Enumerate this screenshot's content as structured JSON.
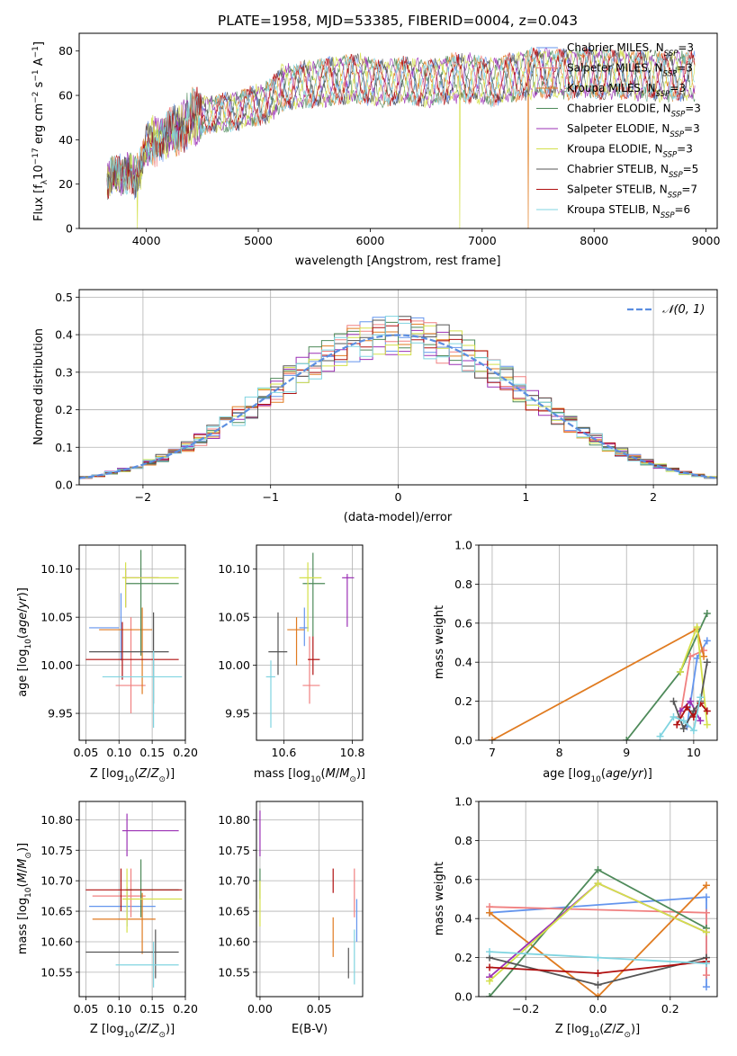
{
  "figure": {
    "title": "PLATE=1958, MJD=53385, FIBERID=0004, z=0.043"
  },
  "legend": {
    "entries": [
      "Chabrier MILES, N_SSP=3",
      "Salpeter MILES, N_SSP=3",
      "Kroupa MILES, N_SSP=3",
      "Chabrier ELODIE, N_SSP=3",
      "Salpeter ELODIE, N_SSP=3",
      "Kroupa ELODIE, N_SSP=3",
      "Chabrier STELIB, N_SSP=5",
      "Salpeter STELIB, N_SSP=7",
      "Kroupa STELIB, N_SSP=6"
    ]
  },
  "colors": {
    "Chabrier MILES": "#6495ed",
    "Salpeter MILES": "#f08080",
    "Kroupa MILES": "#e07b20",
    "Chabrier ELODIE": "#4e8a5a",
    "Salpeter ELODIE": "#9b30b5",
    "Kroupa ELODIE": "#d4e04a",
    "Chabrier STELIB": "#555555",
    "Salpeter STELIB": "#b01010",
    "Kroupa STELIB": "#80d4e0",
    "grid": "#b0b0b0",
    "normal": "#5b8ee0"
  },
  "chart_data": [
    {
      "type": "line",
      "id": "spectrum",
      "xlabel": "wavelength [Angstrom, rest frame]",
      "ylabel": "Flux [f_λ 10^-17 erg cm^-2 s^-1 A^-1]",
      "xlim": [
        3400,
        9100
      ],
      "ylim": [
        0,
        88
      ],
      "xticks": [
        4000,
        5000,
        6000,
        7000,
        8000,
        9000
      ],
      "yticks": [
        0,
        20,
        40,
        60,
        80
      ],
      "grid": false,
      "legend_position": "upper-right",
      "envelope_x": [
        3650,
        3700,
        3800,
        3850,
        3900,
        3950,
        4000,
        4100,
        4200,
        4300,
        4400,
        4500,
        4700,
        4900,
        5100,
        5200,
        5300,
        5500,
        5700,
        5900,
        6100,
        6300,
        6500,
        6700,
        6900,
        7100,
        7300,
        7500,
        7700,
        7900,
        8100,
        8300,
        8500,
        8700,
        8900
      ],
      "envelope_y": [
        24,
        28,
        27,
        30,
        26,
        30,
        42,
        46,
        49,
        50,
        57,
        58,
        59,
        62,
        65,
        72,
        73,
        74,
        76,
        77,
        74,
        76,
        74,
        77,
        77,
        75,
        78,
        80,
        79,
        80,
        79,
        79,
        78,
        78,
        78
      ],
      "dips": [
        {
          "series": "Kroupa ELODIE",
          "x": 3920,
          "y": 0
        },
        {
          "series": "Kroupa ELODIE",
          "x": 6800,
          "y": 0
        },
        {
          "series": "Kroupa MILES",
          "x": 7410,
          "y": 0
        }
      ]
    },
    {
      "type": "histogram",
      "id": "residuals",
      "xlabel": "(data-model)/error",
      "ylabel": "Normed distribution",
      "xlim": [
        -2.5,
        2.5
      ],
      "ylim": [
        0,
        0.52
      ],
      "xticks": [
        -2,
        -1,
        0,
        1,
        2
      ],
      "yticks": [
        0.0,
        0.1,
        0.2,
        0.3,
        0.4,
        0.5
      ],
      "grid": true,
      "legend_position": "upper-right",
      "reference_curve": "𝒩(0, 1)",
      "bin_width": 0.1
    },
    {
      "type": "errorbar",
      "id": "age-vs-Z",
      "xlabel": "Z [log10(Z/Z⊙)]",
      "ylabel": "age  [log10(age/yr)]",
      "xlim": [
        0.04,
        0.2
      ],
      "ylim": [
        9.922,
        10.125
      ],
      "xticks": [
        0.05,
        0.1,
        0.15,
        0.2
      ],
      "yticks": [
        9.95,
        10.0,
        10.05,
        10.1
      ],
      "grid": true,
      "points": [
        {
          "series": "Chabrier MILES",
          "x": 0.103,
          "xerr": [
            0.055,
            0.1
          ],
          "y": 10.039,
          "yerr": [
            10.005,
            10.075
          ]
        },
        {
          "series": "Salpeter MILES",
          "x": 0.118,
          "xerr": [
            0.095,
            0.14
          ],
          "y": 9.979,
          "yerr": [
            9.95,
            10.05
          ]
        },
        {
          "series": "Kroupa MILES",
          "x": 0.135,
          "xerr": [
            0.07,
            0.15
          ],
          "y": 10.037,
          "yerr": [
            9.97,
            10.06
          ]
        },
        {
          "series": "Chabrier ELODIE",
          "x": 0.133,
          "xerr": [
            0.11,
            0.19
          ],
          "y": 10.085,
          "yerr": [
            10.01,
            10.12
          ]
        },
        {
          "series": "Salpeter ELODIE",
          "x": 0.11,
          "xerr": [
            0.105,
            0.16
          ],
          "y": 10.091,
          "yerr": [
            10.06,
            10.1
          ]
        },
        {
          "series": "Kroupa ELODIE",
          "x": 0.11,
          "xerr": [
            0.105,
            0.19
          ],
          "y": 10.091,
          "yerr": [
            10.06,
            10.107
          ]
        },
        {
          "series": "Chabrier STELIB",
          "x": 0.152,
          "xerr": [
            0.055,
            0.175
          ],
          "y": 10.014,
          "yerr": [
            9.96,
            10.055
          ]
        },
        {
          "series": "Salpeter STELIB",
          "x": 0.105,
          "xerr": [
            0.05,
            0.19
          ],
          "y": 10.006,
          "yerr": [
            9.985,
            10.045
          ]
        },
        {
          "series": "Kroupa STELIB",
          "x": 0.152,
          "xerr": [
            0.075,
            0.195
          ],
          "y": 9.988,
          "yerr": [
            9.935,
            10.015
          ]
        }
      ]
    },
    {
      "type": "errorbar",
      "id": "age-vs-mass",
      "xlabel": "mass [log10(M/M⊙)]",
      "ylabel": "",
      "xlim": [
        10.52,
        10.83
      ],
      "ylim": [
        9.922,
        10.125
      ],
      "xticks": [
        10.6,
        10.8
      ],
      "yticks": [
        9.95,
        10.0,
        10.05,
        10.1
      ],
      "grid": true,
      "points": [
        {
          "series": "Chabrier MILES",
          "x": 10.66,
          "xerr": [
            10.645,
            10.672
          ],
          "y": 10.039,
          "yerr": [
            10.02,
            10.06
          ]
        },
        {
          "series": "Salpeter MILES",
          "x": 10.675,
          "xerr": [
            10.655,
            10.705
          ],
          "y": 9.979,
          "yerr": [
            9.96,
            10.03
          ]
        },
        {
          "series": "Kroupa MILES",
          "x": 10.637,
          "xerr": [
            10.61,
            10.66
          ],
          "y": 10.037,
          "yerr": [
            10.0,
            10.05
          ]
        },
        {
          "series": "Chabrier ELODIE",
          "x": 10.685,
          "xerr": [
            10.655,
            10.72
          ],
          "y": 10.085,
          "yerr": [
            10.03,
            10.117
          ]
        },
        {
          "series": "Salpeter ELODIE",
          "x": 10.785,
          "xerr": [
            10.77,
            10.805
          ],
          "y": 10.091,
          "yerr": [
            10.04,
            10.095
          ]
        },
        {
          "series": "Kroupa ELODIE",
          "x": 10.67,
          "xerr": [
            10.645,
            10.71
          ],
          "y": 10.091,
          "yerr": [
            10.035,
            10.107
          ]
        },
        {
          "series": "Chabrier STELIB",
          "x": 10.583,
          "xerr": [
            10.555,
            10.61
          ],
          "y": 10.014,
          "yerr": [
            9.99,
            10.055
          ]
        },
        {
          "series": "Salpeter STELIB",
          "x": 10.685,
          "xerr": [
            10.67,
            10.705
          ],
          "y": 10.006,
          "yerr": [
            9.99,
            10.03
          ]
        },
        {
          "series": "Kroupa STELIB",
          "x": 10.562,
          "xerr": [
            10.548,
            10.575
          ],
          "y": 9.988,
          "yerr": [
            9.935,
            10.005
          ]
        }
      ]
    },
    {
      "type": "line",
      "id": "mass-weight-vs-age",
      "xlabel": "age  [log10(age/yr)]",
      "ylabel": "mass weight",
      "xlim": [
        6.8,
        10.35
      ],
      "ylim": [
        0,
        1.0
      ],
      "xticks": [
        7,
        8,
        9,
        10
      ],
      "yticks": [
        0.0,
        0.2,
        0.4,
        0.6,
        0.8,
        1.0
      ],
      "grid": true,
      "series": [
        {
          "name": "Chabrier MILES",
          "x": [
            9.9,
            10.05,
            10.2
          ],
          "y": [
            0.07,
            0.42,
            0.51
          ]
        },
        {
          "name": "Salpeter MILES",
          "x": [
            9.8,
            9.95,
            10.15
          ],
          "y": [
            0.12,
            0.43,
            0.46
          ]
        },
        {
          "name": "Kroupa MILES",
          "x": [
            7.0,
            10.05,
            10.15
          ],
          "y": [
            0.0,
            0.57,
            0.43
          ]
        },
        {
          "name": "Chabrier ELODIE",
          "x": [
            9.0,
            9.8,
            10.2
          ],
          "y": [
            0.0,
            0.35,
            0.65
          ]
        },
        {
          "name": "Salpeter ELODIE",
          "x": [
            9.8,
            9.95,
            10.1
          ],
          "y": [
            0.15,
            0.2,
            0.1
          ]
        },
        {
          "name": "Kroupa ELODIE",
          "x": [
            9.8,
            10.05,
            10.2
          ],
          "y": [
            0.35,
            0.58,
            0.08
          ]
        },
        {
          "name": "Chabrier STELIB",
          "x": [
            9.7,
            9.85,
            10.0,
            10.1,
            10.2
          ],
          "y": [
            0.2,
            0.06,
            0.15,
            0.2,
            0.4
          ]
        },
        {
          "name": "Salpeter STELIB",
          "x": [
            9.75,
            9.9,
            10.0,
            10.1,
            10.2
          ],
          "y": [
            0.08,
            0.17,
            0.12,
            0.19,
            0.15
          ]
        },
        {
          "name": "Kroupa STELIB",
          "x": [
            9.5,
            9.7,
            9.85,
            10.0,
            10.1
          ],
          "y": [
            0.02,
            0.12,
            0.1,
            0.05,
            0.22
          ]
        }
      ]
    },
    {
      "type": "errorbar",
      "id": "mass-vs-Z",
      "xlabel": "Z [log10(Z/Z⊙)]",
      "ylabel": "mass [log10(M/M⊙)]",
      "xlim": [
        0.04,
        0.2
      ],
      "ylim": [
        10.51,
        10.83
      ],
      "xticks": [
        0.05,
        0.1,
        0.15,
        0.2
      ],
      "yticks": [
        10.55,
        10.6,
        10.65,
        10.7,
        10.75,
        10.8
      ],
      "grid": true,
      "points": [
        {
          "series": "Chabrier MILES",
          "x": 0.112,
          "xerr": [
            0.055,
            0.155
          ],
          "y": 10.658,
          "yerr": [
            10.625,
            10.69
          ]
        },
        {
          "series": "Salpeter MILES",
          "x": 0.118,
          "xerr": [
            0.06,
            0.14
          ],
          "y": 10.675,
          "yerr": [
            10.64,
            10.72
          ]
        },
        {
          "series": "Kroupa MILES",
          "x": 0.135,
          "xerr": [
            0.06,
            0.155
          ],
          "y": 10.637,
          "yerr": [
            10.58,
            10.68
          ]
        },
        {
          "series": "Chabrier ELODIE",
          "x": 0.133,
          "xerr": [
            0.11,
            0.19
          ],
          "y": 10.685,
          "yerr": [
            10.64,
            10.735
          ]
        },
        {
          "series": "Salpeter ELODIE",
          "x": 0.112,
          "xerr": [
            0.105,
            0.19
          ],
          "y": 10.782,
          "yerr": [
            10.74,
            10.81
          ]
        },
        {
          "series": "Kroupa ELODIE",
          "x": 0.112,
          "xerr": [
            0.105,
            0.195
          ],
          "y": 10.67,
          "yerr": [
            10.615,
            10.72
          ]
        },
        {
          "series": "Chabrier STELIB",
          "x": 0.155,
          "xerr": [
            0.05,
            0.19
          ],
          "y": 10.583,
          "yerr": [
            10.54,
            10.62
          ]
        },
        {
          "series": "Salpeter STELIB",
          "x": 0.103,
          "xerr": [
            0.05,
            0.195
          ],
          "y": 10.685,
          "yerr": [
            10.65,
            10.72
          ]
        },
        {
          "series": "Kroupa STELIB",
          "x": 0.152,
          "xerr": [
            0.095,
            0.19
          ],
          "y": 10.562,
          "yerr": [
            10.525,
            10.6
          ]
        }
      ]
    },
    {
      "type": "errorbar",
      "id": "mass-vs-EBV",
      "xlabel": "E(B-V)",
      "ylabel": "",
      "xlim": [
        -0.003,
        0.087
      ],
      "ylim": [
        10.51,
        10.83
      ],
      "xticks": [
        0.0,
        0.05
      ],
      "yticks": [
        10.55,
        10.6,
        10.65,
        10.7,
        10.75,
        10.8
      ],
      "grid": true,
      "points": [
        {
          "series": "Chabrier MILES",
          "x": 0.082,
          "xerr": [
            0.082,
            0.082
          ],
          "y": 10.63,
          "yerr": [
            10.6,
            10.67
          ]
        },
        {
          "series": "Salpeter MILES",
          "x": 0.08,
          "xerr": [
            0.08,
            0.08
          ],
          "y": 10.68,
          "yerr": [
            10.64,
            10.72
          ]
        },
        {
          "series": "Kroupa MILES",
          "x": 0.062,
          "xerr": [
            0.062,
            0.062
          ],
          "y": 10.6,
          "yerr": [
            10.575,
            10.64
          ]
        },
        {
          "series": "Chabrier ELODIE",
          "x": 0.0,
          "xerr": [
            0.0,
            0.0
          ],
          "y": 10.69,
          "yerr": [
            10.67,
            10.72
          ]
        },
        {
          "series": "Salpeter ELODIE",
          "x": 0.0,
          "xerr": [
            0.0,
            0.0
          ],
          "y": 10.78,
          "yerr": [
            10.74,
            10.815
          ]
        },
        {
          "series": "Kroupa ELODIE",
          "x": 0.0,
          "xerr": [
            0.0,
            0.0
          ],
          "y": 10.66,
          "yerr": [
            10.625,
            10.7
          ]
        },
        {
          "series": "Chabrier STELIB",
          "x": 0.075,
          "xerr": [
            0.075,
            0.075
          ],
          "y": 10.56,
          "yerr": [
            10.54,
            10.59
          ]
        },
        {
          "series": "Salpeter STELIB",
          "x": 0.062,
          "xerr": [
            0.062,
            0.062
          ],
          "y": 10.705,
          "yerr": [
            10.68,
            10.72
          ]
        },
        {
          "series": "Kroupa STELIB",
          "x": 0.08,
          "xerr": [
            0.08,
            0.08
          ],
          "y": 10.58,
          "yerr": [
            10.53,
            10.62
          ]
        }
      ]
    },
    {
      "type": "line",
      "id": "mass-weight-vs-Z",
      "xlabel": "Z [log10(Z/Z⊙)]",
      "ylabel": "mass weight",
      "xlim": [
        -0.33,
        0.33
      ],
      "ylim": [
        0,
        1.0
      ],
      "xticks": [
        -0.2,
        0.0,
        0.2
      ],
      "yticks": [
        0.0,
        0.2,
        0.4,
        0.6,
        0.8,
        1.0
      ],
      "grid": true,
      "series": [
        {
          "name": "Chabrier MILES",
          "x": [
            -0.3,
            0.3,
            0.3
          ],
          "y": [
            0.43,
            0.51,
            0.05
          ]
        },
        {
          "name": "Salpeter MILES",
          "x": [
            -0.3,
            0.3,
            0.3
          ],
          "y": [
            0.46,
            0.43,
            0.11
          ]
        },
        {
          "name": "Kroupa MILES",
          "x": [
            -0.3,
            0.0,
            0.3
          ],
          "y": [
            0.43,
            0.0,
            0.57
          ]
        },
        {
          "name": "Chabrier ELODIE",
          "x": [
            -0.3,
            0.0,
            0.3
          ],
          "y": [
            0.0,
            0.65,
            0.35
          ]
        },
        {
          "name": "Salpeter ELODIE",
          "x": [
            -0.3,
            0.0,
            0.3
          ],
          "y": [
            0.1,
            0.58,
            0.33
          ]
        },
        {
          "name": "Kroupa ELODIE",
          "x": [
            -0.3,
            0.0,
            0.3
          ],
          "y": [
            0.08,
            0.58,
            0.33
          ]
        },
        {
          "name": "Chabrier STELIB",
          "x": [
            -0.3,
            0.0,
            0.3
          ],
          "y": [
            0.2,
            0.06,
            0.2
          ]
        },
        {
          "name": "Salpeter STELIB",
          "x": [
            -0.3,
            0.0,
            0.3
          ],
          "y": [
            0.15,
            0.12,
            0.18
          ]
        },
        {
          "name": "Kroupa STELIB",
          "x": [
            -0.3,
            0.0,
            0.3
          ],
          "y": [
            0.23,
            0.2,
            0.17
          ]
        }
      ]
    }
  ]
}
